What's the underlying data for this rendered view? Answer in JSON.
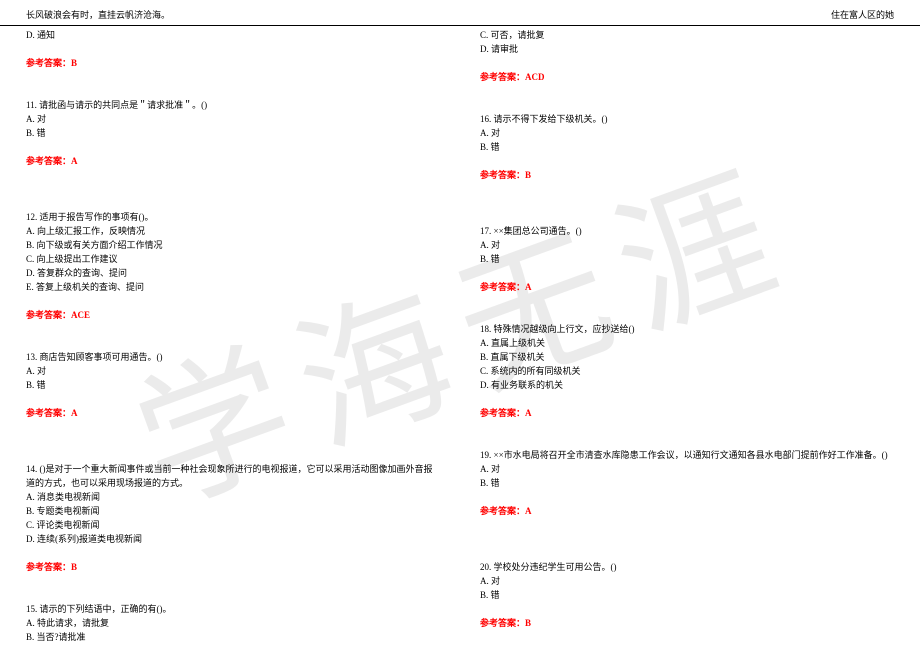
{
  "header": {
    "left": "长风破浪会有时，直挂云帆济沧海。",
    "right": "住在富人区的她"
  },
  "watermark": "学海无涯",
  "answer_label": "参考答案：",
  "left": {
    "pre_option": "D. 通知",
    "ans10": "B",
    "q11": {
      "stem": "11. 请批函与请示的共同点是＂请求批准＂。()",
      "a": "A. 对",
      "b": "B. 错",
      "ans": "A"
    },
    "q12": {
      "stem": "12. 适用于报告写作的事项有()。",
      "a": "A. 向上级汇报工作，反映情况",
      "b": "B. 向下级或有关方面介绍工作情况",
      "c": "C. 向上级提出工作建议",
      "d": "D. 答复群众的查询、提问",
      "e": "E. 答复上级机关的查询、提问",
      "ans": "ACE"
    },
    "q13": {
      "stem": "13. 商店告知顾客事项可用通告。()",
      "a": "A. 对",
      "b": "B. 错",
      "ans": "A"
    },
    "q14": {
      "stem": "14. ()是对于一个重大新闻事件或当前一种社会现象所进行的电视报道，它可以采用活动图像加画外音报",
      "stem2": "道的方式，也可以采用现场报道的方式。",
      "a": "A. 消息类电视新闻",
      "b": "B. 专题类电视新闻",
      "c": "C. 评论类电视新闻",
      "d": "D. 连续(系列)报道类电视新闻",
      "ans": "B"
    },
    "q15": {
      "stem": "15. 请示的下列结语中，正确的有()。",
      "a": "A. 特此请求，请批复",
      "b": "B. 当否?请批准"
    }
  },
  "right": {
    "pre_c": "C. 可否，请批复",
    "pre_d": "D. 请审批",
    "ans_pre": "ACD",
    "q16": {
      "stem": "16. 请示不得下发给下级机关。()",
      "a": "A. 对",
      "b": "B. 错",
      "ans": "B"
    },
    "q17": {
      "stem": "17. ××集团总公司通告。()",
      "a": "A. 对",
      "b": "B. 错",
      "ans": "A"
    },
    "q18": {
      "stem": "18. 特殊情况越级向上行文，应抄送给()",
      "a": "A. 直属上级机关",
      "b": "B. 直属下级机关",
      "c": "C. 系统内的所有同级机关",
      "d": "D. 有业务联系的机关",
      "ans": "A"
    },
    "q19": {
      "stem": "19. ××市水电局将召开全市清查水库隐患工作会议，以通知行文通知各县水电部门提前作好工作准备。()",
      "a": "A. 对",
      "b": "B. 错",
      "ans": "A"
    },
    "q20": {
      "stem": "20. 学校处分违纪学生可用公告。()",
      "a": "A. 对",
      "b": "B. 错",
      "ans": "B"
    }
  }
}
